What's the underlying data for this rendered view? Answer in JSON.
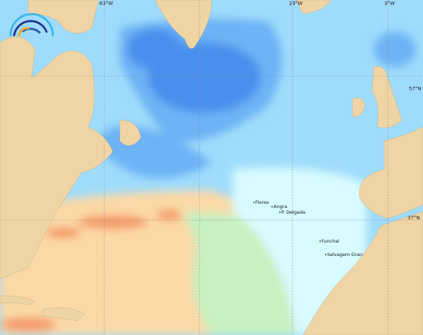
{
  "map": {
    "grid_labels": {
      "lon": [
        "63°W",
        "23°W",
        "3°W"
      ],
      "lat": [
        "57°N",
        "37°N"
      ]
    },
    "places": [
      "Flores",
      "Angra",
      "P. Delgada",
      "Funchal",
      "Selvagem Gran"
    ],
    "colors": {
      "land": "#efd5a6",
      "deep_blue": "#4a90ee",
      "mid_blue": "#6db3f5",
      "light_blue": "#8fd3fb",
      "pale_cyan": "#d8fbff",
      "pale_green": "#c8f0c0",
      "peach": "#fbd9a6",
      "orange": "#f59a6a"
    },
    "logo": "rainbow-arc-logo"
  }
}
